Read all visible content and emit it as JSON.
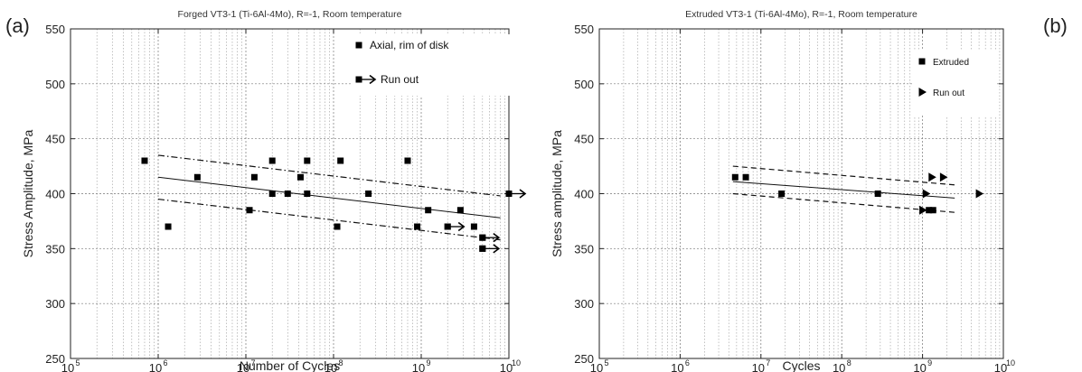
{
  "chart_data": [
    {
      "type": "scatter",
      "panel_label": "(a)",
      "title": "Forged VT3-1 (Ti-6Al-4Mo), R=-1, Room temperature",
      "xlabel": "Number of Cycles",
      "ylabel": "Stress Amplitude, MPa",
      "x_scale": "log",
      "xlim": [
        100000,
        10000000000
      ],
      "ylim": [
        250,
        550
      ],
      "x_tick_base": "10",
      "x_tick_exponents": [
        "5",
        "6",
        "7",
        "8",
        "9",
        "10"
      ],
      "y_ticks": [
        "250",
        "300",
        "350",
        "400",
        "450",
        "500",
        "550"
      ],
      "grid": true,
      "legend_position": "top-right",
      "series": [
        {
          "name": "Axial, rim of disk",
          "marker": "square",
          "points": [
            [
              700000,
              430
            ],
            [
              1300000,
              370
            ],
            [
              2800000,
              415
            ],
            [
              11000000,
              385
            ],
            [
              12500000,
              415
            ],
            [
              20000000,
              430
            ],
            [
              20000000,
              400
            ],
            [
              30000000,
              400
            ],
            [
              42000000,
              415
            ],
            [
              50000000,
              430
            ],
            [
              50000000,
              400
            ],
            [
              110000000,
              370
            ],
            [
              120000000,
              430
            ],
            [
              250000000,
              400
            ],
            [
              700000000,
              430
            ],
            [
              900000000,
              370
            ],
            [
              1200000000,
              385
            ],
            [
              2000000000,
              370
            ],
            [
              2800000000,
              385
            ],
            [
              4000000000,
              370
            ],
            [
              5000000000,
              360
            ],
            [
              5000000000,
              350
            ]
          ]
        },
        {
          "name": "Run out",
          "marker": "square-arrow",
          "points": [
            [
              2000000000,
              370
            ],
            [
              5000000000,
              360
            ],
            [
              5000000000,
              350
            ],
            [
              10000000000,
              400
            ]
          ]
        }
      ],
      "lines": [
        {
          "style": "solid",
          "from": [
            1000000,
            415
          ],
          "to": [
            8000000000,
            378
          ]
        },
        {
          "style": "dashdot",
          "from": [
            1000000,
            435
          ],
          "to": [
            8000000000,
            398
          ]
        },
        {
          "style": "dashdot",
          "from": [
            1000000,
            395
          ],
          "to": [
            8000000000,
            358
          ]
        }
      ]
    },
    {
      "type": "scatter",
      "panel_label": "(b)",
      "title": "Extruded VT3-1 (Ti-6Al-4Mo), R=-1, Room temperature",
      "xlabel": "Cycles",
      "ylabel": "Stress amplitude, MPa",
      "x_scale": "log",
      "xlim": [
        100000,
        10000000000
      ],
      "ylim": [
        250,
        550
      ],
      "x_tick_base": "10",
      "x_tick_exponents": [
        "5",
        "6",
        "7",
        "8",
        "9",
        "10"
      ],
      "y_ticks": [
        "250",
        "300",
        "350",
        "400",
        "450",
        "500",
        "550"
      ],
      "grid": true,
      "legend_position": "top-right",
      "series": [
        {
          "name": "Extruded",
          "marker": "square",
          "points": [
            [
              4800000,
              415
            ],
            [
              6500000,
              415
            ],
            [
              18000000,
              400
            ],
            [
              280000000,
              400
            ],
            [
              1200000000,
              385
            ],
            [
              1350000000,
              385
            ]
          ]
        },
        {
          "name": "Run out",
          "marker": "triangle-right",
          "points": [
            [
              1000000000,
              385
            ],
            [
              1100000000,
              400
            ],
            [
              1300000000,
              415
            ],
            [
              1800000000,
              415
            ],
            [
              5000000000,
              400
            ]
          ]
        }
      ],
      "lines": [
        {
          "style": "solid",
          "from": [
            4500000,
            411
          ],
          "to": [
            2500000000,
            396
          ]
        },
        {
          "style": "dashed",
          "from": [
            4500000,
            425
          ],
          "to": [
            2500000000,
            408
          ]
        },
        {
          "style": "dashed",
          "from": [
            4500000,
            400
          ],
          "to": [
            2500000000,
            383
          ]
        }
      ]
    }
  ]
}
